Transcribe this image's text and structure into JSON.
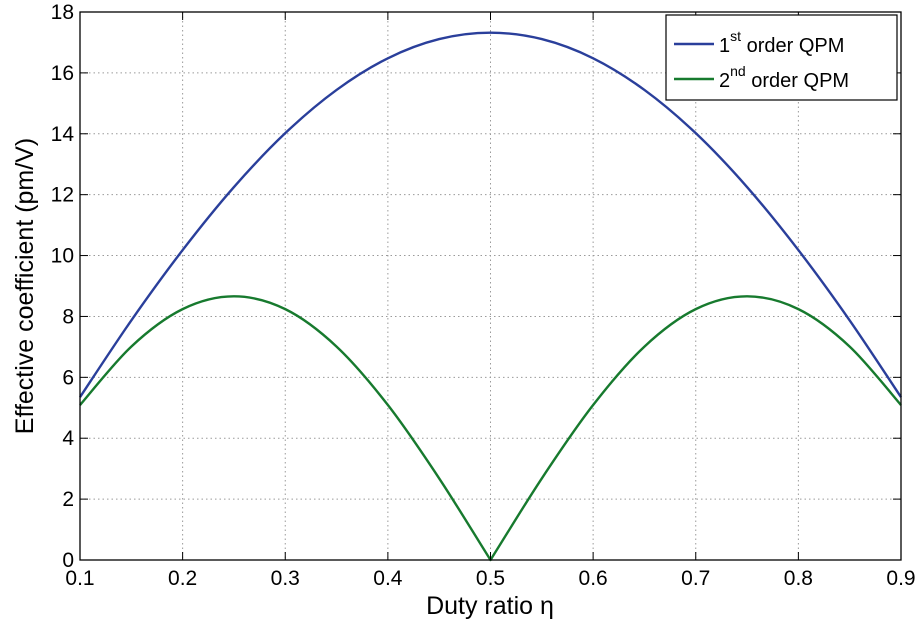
{
  "chart_data": {
    "type": "line",
    "title": "",
    "xlabel": "Duty ratio η",
    "ylabel": "Effective coefficient (pm/V)",
    "xlim": [
      0.1,
      0.9
    ],
    "ylim": [
      0,
      18
    ],
    "xticks": [
      "0.1",
      "0.2",
      "0.3",
      "0.4",
      "0.5",
      "0.6",
      "0.7",
      "0.8",
      "0.9"
    ],
    "yticks": [
      "0",
      "2",
      "4",
      "6",
      "8",
      "10",
      "12",
      "14",
      "16",
      "18"
    ],
    "grid": true,
    "legend_position": "top-right",
    "x": [
      0.1,
      0.15,
      0.2,
      0.25,
      0.3,
      0.35,
      0.4,
      0.45,
      0.5,
      0.55,
      0.6,
      0.65,
      0.7,
      0.75,
      0.8,
      0.85,
      0.9
    ],
    "series": [
      {
        "name_prefix": "1",
        "name_sup": "st",
        "name_suffix": " order QPM",
        "color": "#2a3f9b",
        "values": [
          5.35,
          7.87,
          10.18,
          12.25,
          14.02,
          15.44,
          16.48,
          17.11,
          17.32,
          17.11,
          16.48,
          15.44,
          14.02,
          12.25,
          10.18,
          7.87,
          5.35
        ]
      },
      {
        "name_prefix": "2",
        "name_sup": "nd",
        "name_suffix": " order QPM",
        "color": "#177a2e",
        "values": [
          5.09,
          7.01,
          8.24,
          8.66,
          8.24,
          7.01,
          5.09,
          2.68,
          0.0,
          2.68,
          5.09,
          7.01,
          8.24,
          8.66,
          8.24,
          7.01,
          5.09
        ]
      }
    ]
  }
}
